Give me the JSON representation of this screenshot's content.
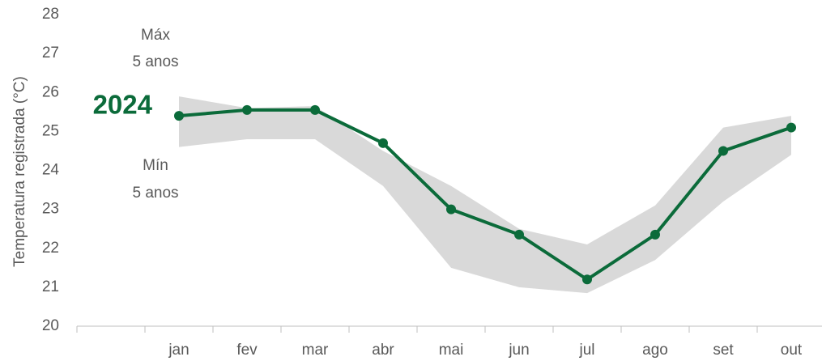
{
  "chart_data": {
    "type": "line",
    "y_label": "Temperatura registrada (°C)",
    "categories": [
      null,
      "jan",
      "fev",
      "mar",
      "abr",
      "mai",
      "jun",
      "jul",
      "ago",
      "set",
      "out"
    ],
    "series": [
      {
        "name": "2024",
        "color": "#0b6b3a",
        "values": [
          null,
          25.4,
          25.55,
          25.55,
          24.7,
          23.0,
          22.35,
          21.2,
          22.35,
          24.5,
          25.1
        ]
      }
    ],
    "band": {
      "color": "#d9d9d9",
      "upper": [
        null,
        25.9,
        25.6,
        25.65,
        24.5,
        23.6,
        22.5,
        22.1,
        23.1,
        25.1,
        25.4
      ],
      "lower": [
        null,
        24.6,
        24.8,
        24.8,
        23.6,
        21.5,
        21.0,
        20.85,
        21.7,
        23.2,
        24.4
      ]
    },
    "annotations": [
      {
        "lines": [
          "Máx",
          "5 anos"
        ]
      },
      {
        "lines": [
          "Mín",
          "5 anos"
        ]
      }
    ],
    "ylim": [
      20,
      28
    ],
    "yticks": [
      20,
      21,
      22,
      23,
      24,
      25,
      26,
      27,
      28
    ]
  }
}
